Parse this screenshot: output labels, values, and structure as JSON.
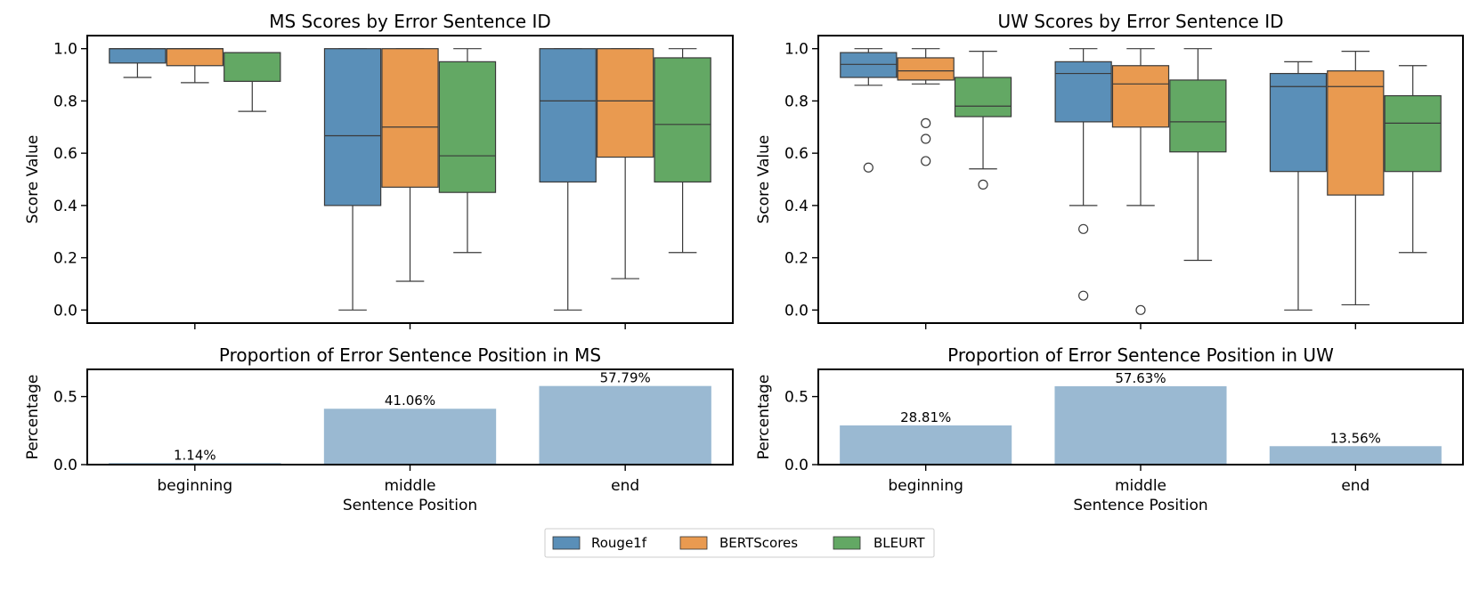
{
  "chart_data": [
    {
      "type": "box",
      "title": "MS Scores by Error Sentence ID",
      "ylabel": "Score Value",
      "xlabel": "",
      "categories": [
        "beginning",
        "middle",
        "end"
      ],
      "ylim": [
        -0.05,
        1.05
      ],
      "yticks": [
        "0.0",
        "0.2",
        "0.4",
        "0.6",
        "0.8",
        "1.0"
      ],
      "series": [
        {
          "name": "Rouge1f",
          "color": "#5a8fb8",
          "boxes": [
            {
              "whislo": 0.89,
              "q1": 0.945,
              "med": 1.0,
              "q3": 1.0,
              "whishi": 1.0,
              "fliers": []
            },
            {
              "whislo": 0.0,
              "q1": 0.4,
              "med": 0.667,
              "q3": 1.0,
              "whishi": 1.0,
              "fliers": []
            },
            {
              "whislo": 0.0,
              "q1": 0.49,
              "med": 0.8,
              "q3": 1.0,
              "whishi": 1.0,
              "fliers": []
            }
          ]
        },
        {
          "name": "BERTScores",
          "color": "#e99a50",
          "boxes": [
            {
              "whislo": 0.87,
              "q1": 0.935,
              "med": 1.0,
              "q3": 1.0,
              "whishi": 1.0,
              "fliers": []
            },
            {
              "whislo": 0.11,
              "q1": 0.47,
              "med": 0.7,
              "q3": 1.0,
              "whishi": 1.0,
              "fliers": []
            },
            {
              "whislo": 0.12,
              "q1": 0.585,
              "med": 0.8,
              "q3": 1.0,
              "whishi": 1.0,
              "fliers": []
            }
          ]
        },
        {
          "name": "BLEURT",
          "color": "#63a864",
          "boxes": [
            {
              "whislo": 0.76,
              "q1": 0.875,
              "med": 0.985,
              "q3": 0.985,
              "whishi": 0.985,
              "fliers": []
            },
            {
              "whislo": 0.22,
              "q1": 0.45,
              "med": 0.59,
              "q3": 0.95,
              "whishi": 1.0,
              "fliers": []
            },
            {
              "whislo": 0.22,
              "q1": 0.49,
              "med": 0.71,
              "q3": 0.965,
              "whishi": 1.0,
              "fliers": []
            }
          ]
        }
      ]
    },
    {
      "type": "box",
      "title": "UW Scores by Error Sentence ID",
      "ylabel": "Score Value",
      "xlabel": "",
      "categories": [
        "beginning",
        "middle",
        "end"
      ],
      "ylim": [
        -0.05,
        1.05
      ],
      "yticks": [
        "0.0",
        "0.2",
        "0.4",
        "0.6",
        "0.8",
        "1.0"
      ],
      "series": [
        {
          "name": "Rouge1f",
          "color": "#5a8fb8",
          "boxes": [
            {
              "whislo": 0.86,
              "q1": 0.89,
              "med": 0.94,
              "q3": 0.985,
              "whishi": 1.0,
              "fliers": [
                0.545
              ]
            },
            {
              "whislo": 0.4,
              "q1": 0.72,
              "med": 0.905,
              "q3": 0.95,
              "whishi": 1.0,
              "fliers": [
                0.31,
                0.055
              ]
            },
            {
              "whislo": 0.0,
              "q1": 0.53,
              "med": 0.855,
              "q3": 0.905,
              "whishi": 0.95,
              "fliers": []
            }
          ]
        },
        {
          "name": "BERTScores",
          "color": "#e99a50",
          "boxes": [
            {
              "whislo": 0.865,
              "q1": 0.88,
              "med": 0.915,
              "q3": 0.965,
              "whishi": 1.0,
              "fliers": [
                0.715,
                0.655,
                0.57
              ]
            },
            {
              "whislo": 0.4,
              "q1": 0.7,
              "med": 0.865,
              "q3": 0.935,
              "whishi": 1.0,
              "fliers": [
                0.0
              ]
            },
            {
              "whislo": 0.02,
              "q1": 0.44,
              "med": 0.855,
              "q3": 0.915,
              "whishi": 0.99,
              "fliers": []
            }
          ]
        },
        {
          "name": "BLEURT",
          "color": "#63a864",
          "boxes": [
            {
              "whislo": 0.54,
              "q1": 0.74,
              "med": 0.78,
              "q3": 0.89,
              "whishi": 0.99,
              "fliers": [
                0.48
              ]
            },
            {
              "whislo": 0.19,
              "q1": 0.605,
              "med": 0.72,
              "q3": 0.88,
              "whishi": 1.0,
              "fliers": []
            },
            {
              "whislo": 0.22,
              "q1": 0.53,
              "med": 0.715,
              "q3": 0.82,
              "whishi": 0.935,
              "fliers": []
            }
          ]
        }
      ]
    },
    {
      "type": "bar",
      "title": "Proportion of Error Sentence Position in MS",
      "ylabel": "Percentage",
      "xlabel": "Sentence Position",
      "categories": [
        "beginning",
        "middle",
        "end"
      ],
      "values": [
        0.0114,
        0.4106,
        0.5779
      ],
      "labels": [
        "1.14%",
        "41.06%",
        "57.79%"
      ],
      "ylim": [
        0,
        0.7
      ],
      "yticks": [
        "0.0",
        "0.5"
      ],
      "color": "#9ab9d2"
    },
    {
      "type": "bar",
      "title": "Proportion of Error Sentence Position in UW",
      "ylabel": "Percentage",
      "xlabel": "Sentence Position",
      "categories": [
        "beginning",
        "middle",
        "end"
      ],
      "values": [
        0.2881,
        0.5763,
        0.1356
      ],
      "labels": [
        "28.81%",
        "57.63%",
        "13.56%"
      ],
      "ylim": [
        0,
        0.7
      ],
      "yticks": [
        "0.0",
        "0.5"
      ],
      "color": "#9ab9d2"
    }
  ],
  "legend": {
    "placement": "bottom-center",
    "items": [
      {
        "label": "Rouge1f",
        "color": "#5a8fb8"
      },
      {
        "label": "BERTScores",
        "color": "#e99a50"
      },
      {
        "label": "BLEURT",
        "color": "#63a864"
      }
    ]
  }
}
